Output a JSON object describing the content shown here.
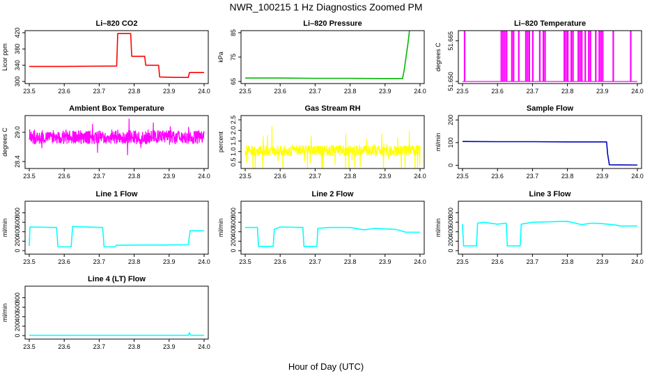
{
  "title": "NWR_100215  1 Hz Diagnostics Zoomed PM",
  "xlabel": "Hour of Day (UTC)",
  "colors": {
    "red": "#ff0000",
    "green": "#00b800",
    "magenta": "#ff00ff",
    "yellow": "#ffff00",
    "blue": "#0000c0",
    "cyan": "#00ffff"
  },
  "chart_data": [
    {
      "type": "line",
      "title": "Li–820 CO2",
      "ylabel": "Licor ppm",
      "color": "#ff0000",
      "xlim": [
        23.5,
        24.0
      ],
      "ylim": [
        300,
        420
      ],
      "xticks": [
        "23.5",
        "23.6",
        "23.7",
        "23.8",
        "23.9",
        "24.0"
      ],
      "yticks": [
        "300",
        "340",
        "380",
        "420"
      ],
      "series": [
        {
          "x": [
            23.5,
            23.6,
            23.75,
            23.753,
            23.79,
            23.793,
            23.83,
            23.833,
            23.87,
            23.873,
            23.92,
            23.955,
            23.958,
            24.0
          ],
          "y": [
            337,
            337,
            338,
            418,
            418,
            362,
            362,
            340,
            340,
            311,
            310,
            310,
            322,
            322
          ]
        }
      ]
    },
    {
      "type": "line",
      "title": "Li–820 Pressure",
      "ylabel": "kPa",
      "color": "#00b800",
      "xlim": [
        23.5,
        24.0
      ],
      "ylim": [
        65,
        85
      ],
      "xticks": [
        "23.5",
        "23.6",
        "23.7",
        "23.8",
        "23.9",
        "24.0"
      ],
      "yticks": [
        "65",
        "75",
        "85"
      ],
      "series": [
        {
          "x": [
            23.5,
            23.6,
            23.7,
            23.8,
            23.9,
            23.95,
            23.955,
            23.965,
            23.97,
            23.975,
            24.0
          ],
          "y": [
            66.4,
            66.4,
            66.3,
            66.3,
            66.2,
            66.2,
            70,
            80,
            86,
            88.2,
            88.2
          ]
        }
      ]
    },
    {
      "type": "line",
      "title": "Li–820 Temperature",
      "ylabel": "degrees C",
      "color": "#ff00ff",
      "xlim": [
        23.5,
        24.0
      ],
      "ylim": [
        51.65,
        51.668
      ],
      "xticks": [
        "23.5",
        "23.6",
        "23.7",
        "23.8",
        "23.9",
        "24.0"
      ],
      "yticks": [
        "51.650",
        "51.665"
      ],
      "baseline": 51.65,
      "spike_level": 51.671,
      "spike_x": [
        23.505,
        23.61,
        23.615,
        23.62,
        23.625,
        23.64,
        23.645,
        23.66,
        23.68,
        23.685,
        23.69,
        23.7,
        23.72,
        23.73,
        23.735,
        23.79,
        23.795,
        23.8,
        23.81,
        23.815,
        23.83,
        23.835,
        23.84,
        23.85,
        23.86,
        23.865,
        23.88,
        23.89,
        23.895,
        23.9,
        23.93,
        23.98
      ]
    },
    {
      "type": "line",
      "title": "Ambient Box Temperature",
      "ylabel": "degrees C",
      "color": "#ff00ff",
      "xlim": [
        23.5,
        24.0
      ],
      "ylim": [
        28.3,
        29.3
      ],
      "xticks": [
        "23.5",
        "23.6",
        "23.7",
        "23.8",
        "23.9",
        "24.0"
      ],
      "yticks": [
        "28.4",
        "29.0"
      ],
      "noise": {
        "center": 28.9,
        "spread": 0.14,
        "spike": 0.32
      }
    },
    {
      "type": "line",
      "title": "Gas Stream RH",
      "ylabel": "percent",
      "color": "#ffff00",
      "xlim": [
        23.5,
        24.0
      ],
      "ylim": [
        0.3,
        2.6
      ],
      "xticks": [
        "23.5",
        "23.6",
        "23.7",
        "23.8",
        "23.9",
        "24.0"
      ],
      "yticks": [
        "0.5",
        "1.0",
        "1.5",
        "2.0",
        "2.5"
      ],
      "noise": {
        "center": 1.05,
        "spread": 0.25,
        "spike": 1.2
      }
    },
    {
      "type": "line",
      "title": "Sample Flow",
      "ylabel": "ml/min",
      "color": "#0000c0",
      "xlim": [
        23.5,
        24.0
      ],
      "ylim": [
        -5,
        210
      ],
      "xticks": [
        "23.5",
        "23.6",
        "23.7",
        "23.8",
        "23.9",
        "24.0"
      ],
      "yticks": [
        "0",
        "100",
        "200"
      ],
      "series": [
        {
          "x": [
            23.5,
            23.6,
            23.7,
            23.8,
            23.9,
            23.912,
            23.915,
            23.92,
            24.0
          ],
          "y": [
            105,
            104,
            104,
            103,
            103,
            103,
            50,
            2,
            1
          ]
        }
      ]
    },
    {
      "type": "line",
      "title": "Line 1 Flow",
      "ylabel": "ml/min",
      "color": "#00ffff",
      "xlim": [
        23.5,
        24.0
      ],
      "ylim": [
        -30,
        1000
      ],
      "xticks": [
        "23.5",
        "23.6",
        "23.7",
        "23.8",
        "23.9",
        "24.0"
      ],
      "yticks": [
        "0",
        "200",
        "400",
        "600",
        "800"
      ],
      "series": [
        {
          "x": [
            23.5,
            23.502,
            23.578,
            23.582,
            23.62,
            23.624,
            23.71,
            23.714,
            23.745,
            23.75,
            23.8,
            23.9,
            23.955,
            23.96,
            24.0
          ],
          "y": [
            100,
            500,
            490,
            80,
            80,
            510,
            490,
            80,
            80,
            115,
            115,
            120,
            125,
            420,
            420
          ]
        }
      ]
    },
    {
      "type": "line",
      "title": "Line 2 Flow",
      "ylabel": "ml/min",
      "color": "#00ffff",
      "xlim": [
        23.5,
        24.0
      ],
      "ylim": [
        -30,
        1000
      ],
      "xticks": [
        "23.5",
        "23.6",
        "23.7",
        "23.8",
        "23.9",
        "24.0"
      ],
      "yticks": [
        "0",
        "200",
        "400",
        "600",
        "800"
      ],
      "series": [
        {
          "x": [
            23.5,
            23.535,
            23.538,
            23.58,
            23.583,
            23.6,
            23.665,
            23.668,
            23.705,
            23.708,
            23.74,
            23.8,
            23.84,
            23.87,
            23.9,
            23.93,
            23.96,
            24.0
          ],
          "y": [
            490,
            490,
            90,
            90,
            450,
            500,
            490,
            90,
            90,
            470,
            490,
            490,
            440,
            470,
            460,
            450,
            390,
            390
          ]
        }
      ]
    },
    {
      "type": "line",
      "title": "Line 3 Flow",
      "ylabel": "ml/min",
      "color": "#00ffff",
      "xlim": [
        23.5,
        24.0
      ],
      "ylim": [
        -30,
        1000
      ],
      "xticks": [
        "23.5",
        "23.6",
        "23.7",
        "23.8",
        "23.9",
        "24.0"
      ],
      "yticks": [
        "0",
        "200",
        "400",
        "600",
        "800"
      ],
      "series": [
        {
          "x": [
            23.5,
            23.503,
            23.54,
            23.543,
            23.56,
            23.6,
            23.625,
            23.628,
            23.665,
            23.668,
            23.7,
            23.8,
            23.84,
            23.87,
            23.9,
            23.94,
            23.95,
            24.0
          ],
          "y": [
            560,
            100,
            100,
            580,
            600,
            560,
            580,
            100,
            100,
            560,
            600,
            620,
            550,
            580,
            570,
            540,
            520,
            520
          ]
        }
      ]
    },
    {
      "type": "line",
      "title": "Line 4 (LT) Flow",
      "ylabel": "ml/min",
      "color": "#00ffff",
      "xlim": [
        23.5,
        24.0
      ],
      "ylim": [
        -30,
        1000
      ],
      "xticks": [
        "23.5",
        "23.6",
        "23.7",
        "23.8",
        "23.9",
        "24.0"
      ],
      "yticks": [
        "0",
        "200",
        "400",
        "600",
        "800"
      ],
      "series": [
        {
          "x": [
            23.5,
            23.6,
            23.7,
            23.8,
            23.9,
            23.955,
            23.958,
            23.96,
            23.963,
            24.0
          ],
          "y": [
            5,
            5,
            5,
            5,
            5,
            5,
            60,
            20,
            5,
            5
          ]
        }
      ]
    }
  ]
}
